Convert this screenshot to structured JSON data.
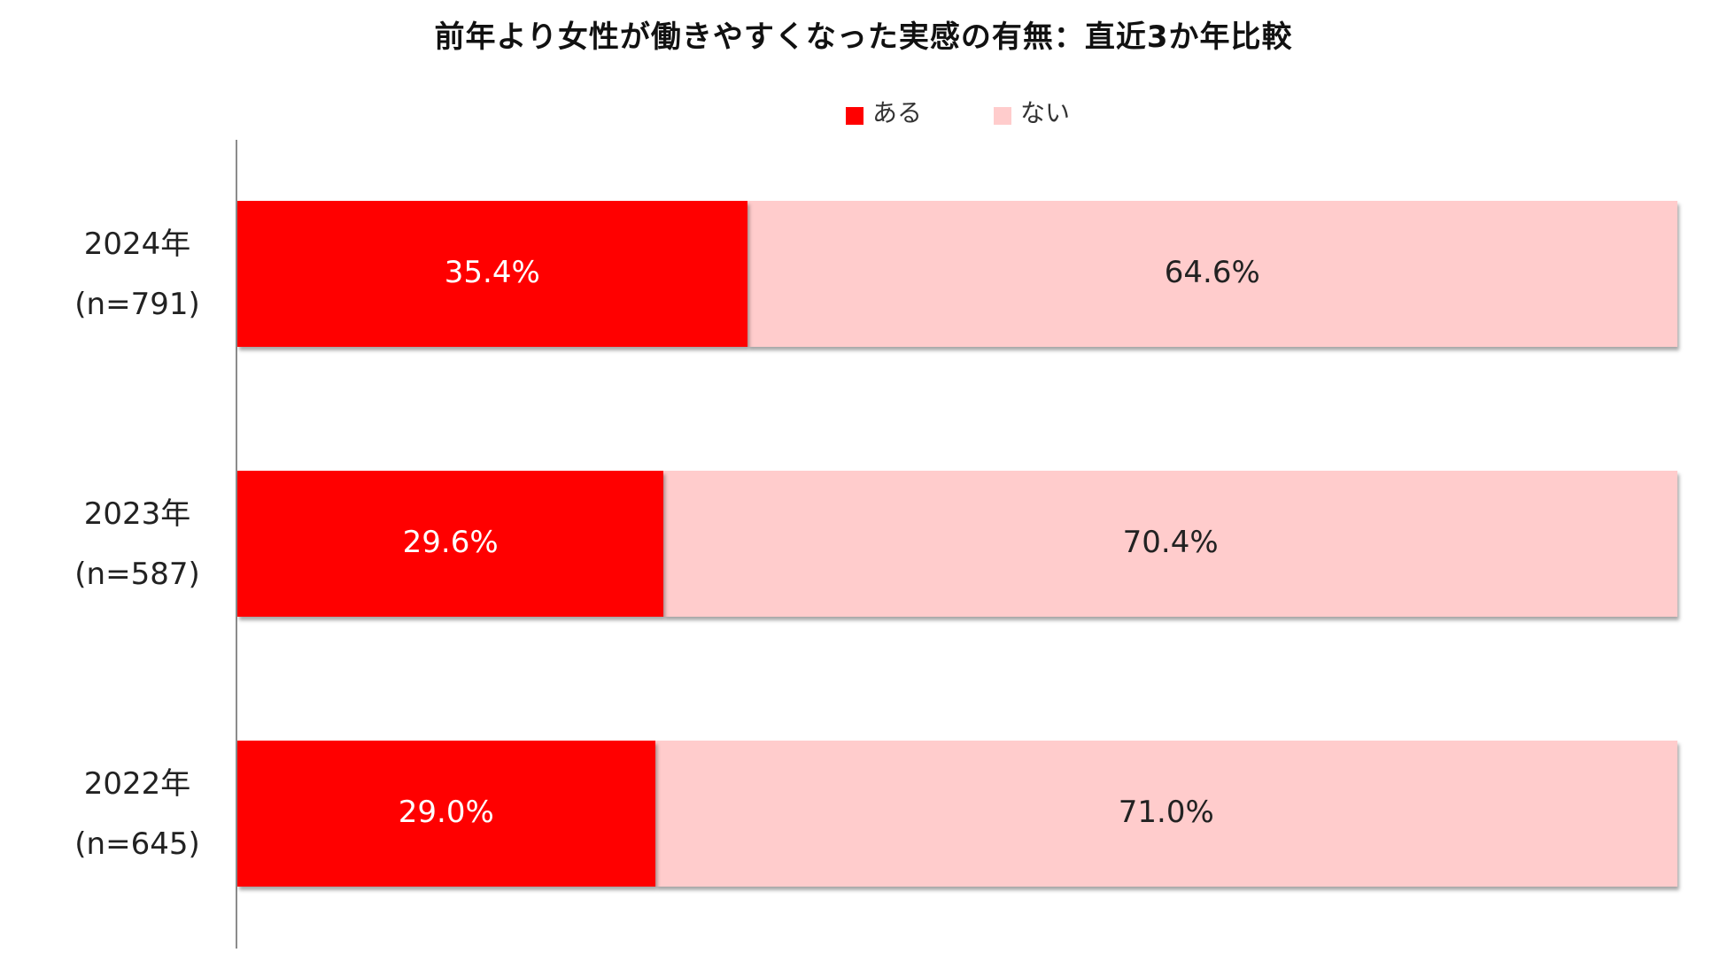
{
  "chart_data": {
    "type": "bar",
    "orientation": "horizontal",
    "stacked": true,
    "percent_stacked": true,
    "title": "前年より女性が働きやすくなった実感の有無：直近3か年比較",
    "categories": [
      {
        "year": "2024年",
        "n": "(n=791)"
      },
      {
        "year": "2023年",
        "n": "(n=587)"
      },
      {
        "year": "2022年",
        "n": "(n=645)"
      }
    ],
    "series": [
      {
        "name": "ある",
        "color": "#ff0000",
        "label_color": "#ffffff",
        "values": [
          35.4,
          29.6,
          29.0
        ],
        "labels": [
          "35.4%",
          "29.6%",
          "29.0%"
        ]
      },
      {
        "name": "ない",
        "color": "#ffcccc",
        "label_color": "#222222",
        "values": [
          64.6,
          70.4,
          71.0
        ],
        "labels": [
          "64.6%",
          "70.4%",
          "71.0%"
        ]
      }
    ],
    "xlim": [
      0,
      100
    ],
    "grid": false,
    "legend": "top-center"
  }
}
